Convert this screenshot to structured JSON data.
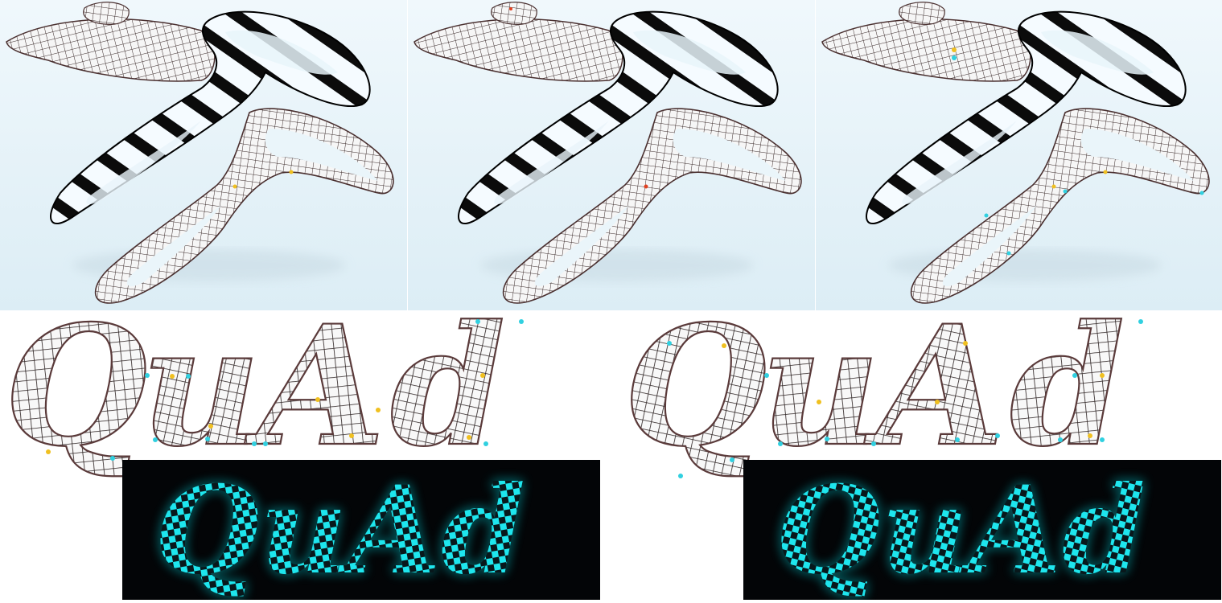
{
  "render_panels": [
    {
      "name": "render-left",
      "marker_colors": [
        "#f0c020"
      ]
    },
    {
      "name": "render-middle",
      "marker_colors": [
        "#e04020"
      ]
    },
    {
      "name": "render-right",
      "marker_colors": [
        "#f0c020",
        "#30d0e0"
      ]
    }
  ],
  "quad_rows": [
    {
      "name": "quad-row-left",
      "word": "QuAd",
      "letters": [
        "Q",
        "u",
        "A",
        "d"
      ]
    },
    {
      "name": "quad-row-right",
      "word": "QuAd",
      "letters": [
        "Q",
        "u",
        "A",
        "d"
      ]
    }
  ],
  "glow_panels": [
    {
      "name": "glow-left",
      "word": "QuAd"
    },
    {
      "name": "glow-right",
      "word": "QuAd"
    }
  ],
  "colors": {
    "background": "#e4f3fa",
    "mesh_line": "#3a2a2a",
    "mesh_fill": "#f4f4f4",
    "stripe_dark": "#0a0a0a",
    "glow_cyan": "#18e0e8",
    "singularity_yellow": "#f0c020",
    "singularity_cyan": "#30d0e0"
  }
}
